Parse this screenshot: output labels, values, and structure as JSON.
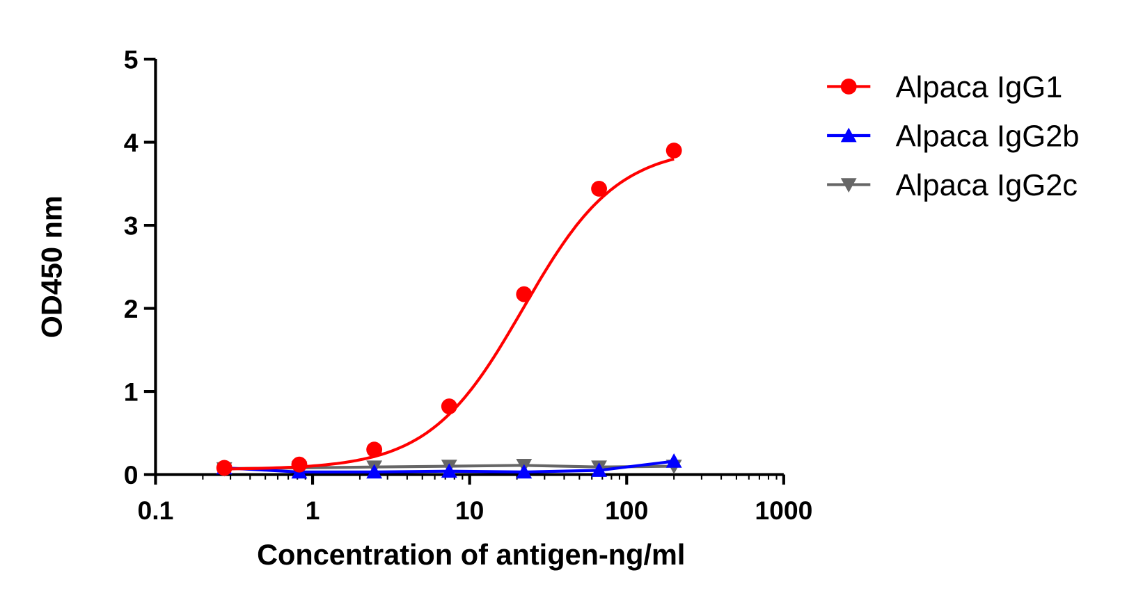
{
  "chart_data": {
    "type": "line",
    "xlabel": "Concentration of antigen-ng/ml",
    "ylabel": "OD450 nm",
    "xscale": "log",
    "xlim": [
      0.1,
      1000
    ],
    "ylim": [
      0,
      5
    ],
    "xticks": [
      "0.1",
      "1",
      "10",
      "100",
      "1000"
    ],
    "yticks": [
      "0",
      "1",
      "2",
      "3",
      "4",
      "5"
    ],
    "grid": false,
    "legend_position": "top-right",
    "x": [
      0.274,
      0.823,
      2.47,
      7.41,
      22.2,
      66.7,
      200
    ],
    "series": [
      {
        "name": "Alpaca IgG1",
        "color": "#ff0000",
        "marker": "circle",
        "values": [
          0.08,
          0.12,
          0.3,
          0.82,
          2.17,
          3.44,
          3.9
        ]
      },
      {
        "name": "Alpaca IgG2b",
        "color": "#0000ff",
        "marker": "triangle-up",
        "values": [
          0.08,
          0.03,
          0.03,
          0.04,
          0.03,
          0.05,
          0.16
        ]
      },
      {
        "name": "Alpaca IgG2c",
        "color": "#666666",
        "marker": "triangle-down",
        "values": [
          0.07,
          0.08,
          0.09,
          0.1,
          0.11,
          0.09,
          0.1
        ]
      }
    ]
  }
}
